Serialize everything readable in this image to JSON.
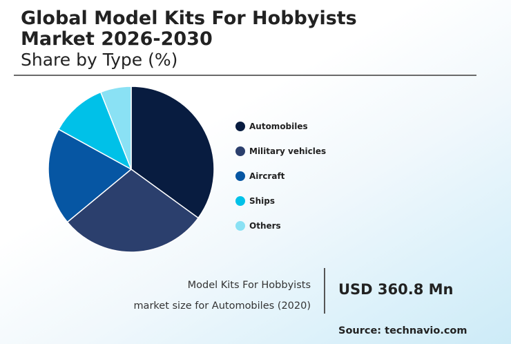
{
  "header": {
    "title_line1": "Global Model Kits For Hobbyists",
    "title_line2": "Market 2026-2030",
    "subtitle": "Share by Type (%)"
  },
  "chart_data": {
    "type": "pie",
    "title": "Global Model Kits For Hobbyists Market 2026-2030",
    "subtitle": "Share by Type (%)",
    "legend_position": "right",
    "categories": [
      "Automobiles",
      "Military vehicles",
      "Aircraft",
      "Ships",
      "Others"
    ],
    "values": [
      35,
      29,
      19,
      11,
      6
    ],
    "colors": [
      "#081c40",
      "#2b3f6d",
      "#0656a3",
      "#00c1e8",
      "#8ae1f4"
    ]
  },
  "stat": {
    "caption_line1": "Model Kits For Hobbyists",
    "caption_line2": "market size for Automobiles (2020)",
    "value": "USD 360.8 Mn"
  },
  "source": "Source: technavio.com"
}
